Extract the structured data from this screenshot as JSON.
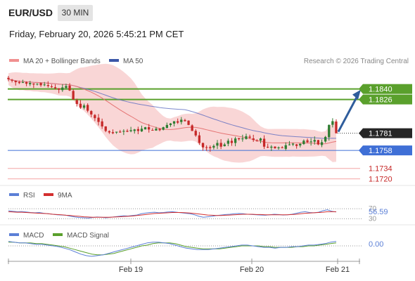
{
  "header": {
    "symbol": "EUR/USD",
    "timeframe": "30 MIN",
    "datetime": "Friday, February 20, 2026 5:45:21 PM CET"
  },
  "legend": {
    "ma20_bb": "MA 20 + Bollinger Bands",
    "ma50": "MA 50",
    "copyright": "Research © 2026 Trading Central"
  },
  "colors": {
    "up": "#2e7d32",
    "down": "#c62828",
    "bollinger": "#f7c8c8",
    "ma20": "#e57373",
    "ma50": "#5c6bc0",
    "resistance": "#5aa02c",
    "support": "#3f6fd6",
    "weak_level": "#f4a6a6",
    "arrow": "#2f5d9c",
    "rsi": "#5b7fd6",
    "rsi_ma": "#d32f2f",
    "macd": "#5b7fd6",
    "macd_signal": "#5aa02c"
  },
  "chart_data": [
    {
      "type": "candlestick",
      "title": "EUR/USD",
      "x_ticks": [
        "Feb 19",
        "Feb 20",
        "Feb 21"
      ],
      "price_label": "1.1781",
      "levels": [
        {
          "label": "1.1840",
          "value": 1.184,
          "kind": "resistance"
        },
        {
          "label": "1.1826",
          "value": 1.1826,
          "kind": "resistance"
        },
        {
          "label": "1.1758",
          "value": 1.1758,
          "kind": "support"
        },
        {
          "label": "1.1734",
          "value": 1.1734,
          "kind": "minor"
        },
        {
          "label": "1.1720",
          "value": 1.172,
          "kind": "minor"
        }
      ],
      "closes": [
        1.1853,
        1.1851,
        1.1849,
        1.1848,
        1.1849,
        1.1847,
        1.1848,
        1.1846,
        1.1847,
        1.1845,
        1.1846,
        1.1844,
        1.1843,
        1.1841,
        1.1839,
        1.1842,
        1.1844,
        1.1838,
        1.1826,
        1.182,
        1.1815,
        1.1818,
        1.1811,
        1.1806,
        1.1801,
        1.1796,
        1.179,
        1.1784,
        1.1782,
        1.1781,
        1.1783,
        1.1782,
        1.1784,
        1.1783,
        1.1785,
        1.1786,
        1.1784,
        1.1787,
        1.1789,
        1.1786,
        1.1785,
        1.1787,
        1.1785,
        1.1789,
        1.1792,
        1.1794,
        1.1797,
        1.1795,
        1.1799,
        1.1797,
        1.1792,
        1.1784,
        1.1778,
        1.1768,
        1.1762,
        1.1762,
        1.1761,
        1.1764,
        1.1768,
        1.1763,
        1.1766,
        1.1771,
        1.1768,
        1.1774,
        1.1773,
        1.1774,
        1.1777,
        1.1775,
        1.1772,
        1.1771,
        1.1774,
        1.1763,
        1.1762,
        1.1763,
        1.1761,
        1.1762,
        1.1761,
        1.1765,
        1.1766,
        1.1767,
        1.1764,
        1.1767,
        1.1771,
        1.1769,
        1.177,
        1.1772,
        1.1766,
        1.1769,
        1.1776,
        1.1792,
        1.1797,
        1.1781
      ],
      "ma50_label": "MA 50",
      "ma20_label": "MA 20 + Bollinger Bands"
    },
    {
      "type": "line",
      "series": [
        {
          "name": "RSI"
        },
        {
          "name": "9MA"
        }
      ],
      "levels": [
        "70",
        "30"
      ],
      "current_value": "56.59",
      "rsi": [
        62,
        60,
        58,
        59,
        57,
        55,
        54,
        55,
        52,
        50,
        48,
        46,
        45,
        44,
        40,
        37,
        35,
        34,
        33,
        35,
        37,
        36,
        34,
        36,
        38,
        40,
        42,
        41,
        43,
        45,
        50,
        53,
        55,
        56,
        54,
        55,
        57,
        58,
        56,
        54,
        52,
        50,
        46,
        40,
        36,
        38,
        40,
        43,
        45,
        47,
        48,
        50,
        51,
        50,
        48,
        47,
        46,
        45,
        44,
        46,
        48,
        47,
        45,
        46,
        48,
        52,
        56,
        58,
        55,
        54,
        56,
        62,
        66,
        60,
        57
      ],
      "rsi_ma": [
        58,
        57,
        56,
        56,
        55,
        54,
        53,
        52,
        51,
        50,
        48,
        47,
        46,
        44,
        43,
        41,
        40,
        38,
        37,
        36,
        36,
        36,
        36,
        36,
        37,
        38,
        39,
        40,
        41,
        43,
        45,
        47,
        49,
        51,
        52,
        53,
        54,
        55,
        55,
        55,
        54,
        53,
        51,
        49,
        47,
        45,
        44,
        43,
        43,
        44,
        45,
        46,
        47,
        48,
        48,
        48,
        47,
        47,
        46,
        46,
        46,
        46,
        46,
        46,
        47,
        48,
        50,
        52,
        53,
        54,
        55,
        56,
        58,
        58,
        58
      ]
    },
    {
      "type": "line",
      "series": [
        {
          "name": "MACD"
        },
        {
          "name": "MACD Signal"
        }
      ],
      "current_value": "0.00",
      "macd": [
        0.0006,
        0.0005,
        0.0004,
        0.0004,
        0.0003,
        0.0002,
        0.0002,
        0.0001,
        0.0,
        -0.0001,
        -0.0003,
        -0.0005,
        -0.0008,
        -0.0011,
        -0.0013,
        -0.0014,
        -0.0013,
        -0.0012,
        -0.001,
        -0.0008,
        -0.0006,
        -0.0004,
        -0.0002,
        0.0,
        0.0002,
        0.0004,
        0.0005,
        0.0005,
        0.0004,
        0.0003,
        0.0001,
        -0.0001,
        -0.0003,
        -0.0004,
        -0.0005,
        -0.0005,
        -0.0005,
        -0.0004,
        -0.0003,
        -0.0002,
        -0.0001,
        0.0,
        0.0001,
        0.0001,
        0.0,
        -0.0001,
        -0.0002,
        -0.0002,
        -0.0003,
        -0.0002,
        -0.0002,
        -0.0001,
        -0.0001,
        0.0,
        0.0001,
        0.0001,
        0.0002,
        0.0003,
        0.0005,
        0.0006
      ],
      "signal": [
        0.0005,
        0.0005,
        0.0004,
        0.0004,
        0.0004,
        0.0003,
        0.0003,
        0.0002,
        0.0001,
        0.0,
        -0.0001,
        -0.0003,
        -0.0005,
        -0.0007,
        -0.0009,
        -0.0011,
        -0.0012,
        -0.0012,
        -0.0011,
        -0.001,
        -0.0008,
        -0.0006,
        -0.0004,
        -0.0002,
        0.0,
        0.0001,
        0.0003,
        0.0004,
        0.0004,
        0.0004,
        0.0003,
        0.0001,
        -0.0001,
        -0.0002,
        -0.0003,
        -0.0004,
        -0.0004,
        -0.0004,
        -0.0004,
        -0.0003,
        -0.0002,
        -0.0001,
        0.0,
        0.0,
        0.0,
        0.0,
        -0.0001,
        -0.0001,
        -0.0002,
        -0.0002,
        -0.0002,
        -0.0002,
        -0.0001,
        -0.0001,
        0.0,
        0.0,
        0.0001,
        0.0002,
        0.0003,
        0.0004
      ]
    }
  ]
}
